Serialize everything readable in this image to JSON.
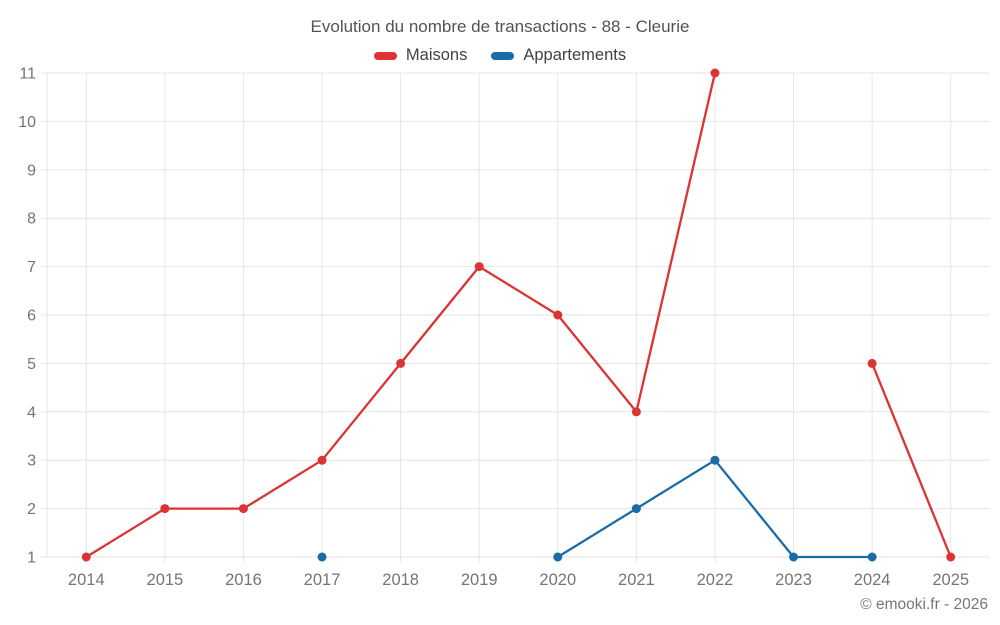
{
  "title": "Evolution du nombre de transactions - 88 - Cleurie",
  "footer": "© emooki.fr - 2026",
  "colors": {
    "maisons": "#dc3333",
    "appartements": "#1b6ca5",
    "grid": "#e6e6e6",
    "axis_text": "#757575",
    "title_text": "#535353",
    "legend_text": "#424242",
    "footer_text": "#767676"
  },
  "chart_data": {
    "type": "line",
    "title": "Evolution du nombre de transactions - 88 - Cleurie",
    "categories": [
      "2014",
      "2015",
      "2016",
      "2017",
      "2018",
      "2019",
      "2020",
      "2021",
      "2022",
      "2023",
      "2024",
      "2025"
    ],
    "series": [
      {
        "name": "Maisons",
        "color": "#dc3333",
        "values": [
          1,
          2,
          2,
          3,
          5,
          7,
          6,
          4,
          11,
          null,
          5,
          1
        ]
      },
      {
        "name": "Appartements",
        "color": "#1b6ca5",
        "values": [
          null,
          null,
          null,
          1,
          null,
          null,
          1,
          2,
          3,
          1,
          1,
          null
        ]
      }
    ],
    "xlabel": "",
    "ylabel": "",
    "ylim": [
      1,
      11
    ],
    "yticks": [
      1,
      2,
      3,
      4,
      5,
      6,
      7,
      8,
      9,
      10,
      11
    ],
    "grid": true,
    "legend_position": "top",
    "missing_points_break_line": true
  }
}
